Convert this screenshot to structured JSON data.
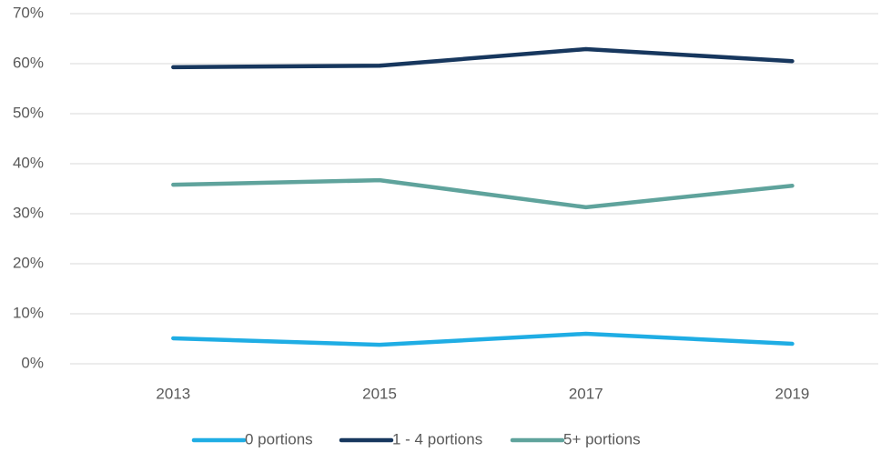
{
  "chart_data": {
    "type": "line",
    "categories": [
      "2013",
      "2015",
      "2017",
      "2019"
    ],
    "series": [
      {
        "name": "0 portions",
        "color": "#1fade4",
        "values": [
          5.1,
          3.8,
          6.0,
          4.0
        ]
      },
      {
        "name": "1 - 4 portions",
        "color": "#17375e",
        "values": [
          59.3,
          59.6,
          62.9,
          60.5
        ]
      },
      {
        "name": "5+ portions",
        "color": "#5fa39c",
        "values": [
          35.8,
          36.7,
          31.3,
          35.6
        ]
      }
    ],
    "ylim": [
      0,
      70
    ],
    "yticks": [
      {
        "value": 0,
        "label": "0%"
      },
      {
        "value": 10,
        "label": "10%"
      },
      {
        "value": 20,
        "label": "20%"
      },
      {
        "value": 30,
        "label": "30%"
      },
      {
        "value": 40,
        "label": "40%"
      },
      {
        "value": 50,
        "label": "50%"
      },
      {
        "value": 60,
        "label": "60%"
      },
      {
        "value": 70,
        "label": "70%"
      }
    ],
    "grid": true,
    "legend": "bottom"
  }
}
